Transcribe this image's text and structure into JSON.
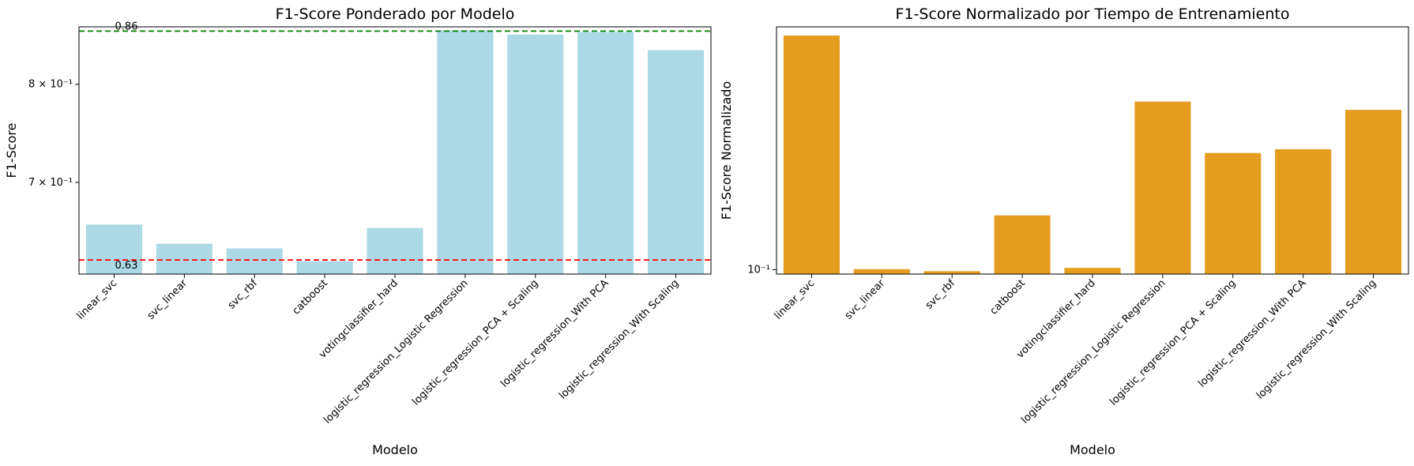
{
  "chart_data": [
    {
      "type": "bar",
      "title": "F1-Score Ponderado por Modelo",
      "xlabel": "Modelo",
      "ylabel": "F1-Score",
      "yscale": "log",
      "ylim": [
        0.618,
        0.865
      ],
      "grid": false,
      "bar_color": "#add8e6",
      "categories": [
        "linear_svc",
        "svc_linear",
        "svc_rbf",
        "catboost",
        "votingclassifier_hard",
        "logistic_regression_Logistic Regression",
        "logistic_regression_PCA + Scaling",
        "logistic_regression_With PCA",
        "logistic_regression_With Scaling"
      ],
      "values": [
        0.661,
        0.644,
        0.64,
        0.629,
        0.658,
        0.861,
        0.856,
        0.859,
        0.838
      ],
      "yticks": [
        {
          "value": 0.7,
          "label": "7 × 10⁻¹"
        },
        {
          "value": 0.8,
          "label": "8 × 10⁻¹"
        }
      ],
      "reference_lines": [
        {
          "value": 0.86,
          "label": "0.86",
          "color": "#008000"
        },
        {
          "value": 0.63,
          "label": "0.63",
          "color": "#ff0000"
        }
      ]
    },
    {
      "type": "bar",
      "title": "F1-Score Normalizado por Tiempo de Entrenamiento",
      "xlabel": "Modelo",
      "ylabel": "F1-Score Normalizado",
      "yscale": "log",
      "ylim": [
        0.0965,
        0.73
      ],
      "grid": false,
      "bar_color": "#e59d20",
      "categories": [
        "linear_svc",
        "svc_linear",
        "svc_rbf",
        "catboost",
        "votingclassifier_hard",
        "logistic_regression_Logistic Regression",
        "logistic_regression_PCA + Scaling",
        "logistic_regression_With PCA",
        "logistic_regression_With Scaling"
      ],
      "values": [
        0.68,
        0.1005,
        0.0988,
        0.156,
        0.1015,
        0.396,
        0.26,
        0.268,
        0.37
      ],
      "yticks": [
        {
          "value": 0.1,
          "label": "10⁻¹"
        }
      ],
      "reference_lines": []
    }
  ]
}
